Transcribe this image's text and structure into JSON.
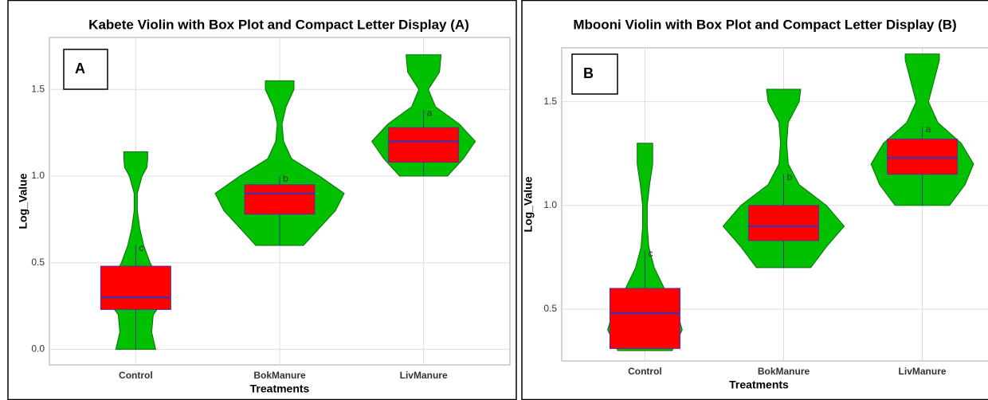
{
  "chart_data": [
    {
      "type": "violin",
      "title": "Kabete Violin with Box Plot and Compact Letter Display (A)",
      "panel_label": "A",
      "xlabel": "Treatments",
      "ylabel": "Log_Value",
      "categories": [
        "Control",
        "BokManure",
        "LivManure"
      ],
      "ylim": [
        -0.09,
        1.8
      ],
      "yticks": [
        {
          "value": 0,
          "label": "0.0"
        },
        0.5,
        {
          "value": 1,
          "label": "1.0"
        },
        1.5
      ],
      "grid": true,
      "violin_color": "#00c000",
      "box_color": "#ff0000",
      "median_color": "#4b2fa0",
      "boxes": [
        {
          "min": 0,
          "q1": 0.23,
          "median": 0.3,
          "q3": 0.48,
          "max": 0.6,
          "letter": "c"
        },
        {
          "min": 0.6,
          "q1": 0.78,
          "median": 0.9,
          "q3": 0.95,
          "max": 1.0,
          "letter": "b"
        },
        {
          "min": 1.0,
          "q1": 1.08,
          "median": 1.2,
          "q3": 1.28,
          "max": 1.38,
          "letter": "a"
        }
      ],
      "violins": [
        {
          "y": [
            0,
            0.1,
            0.2,
            0.3,
            0.4,
            0.5,
            0.6,
            0.7,
            0.8,
            0.9,
            1.0,
            1.05,
            1.1,
            1.14
          ],
          "density": [
            25,
            20,
            22,
            38,
            30,
            18,
            10,
            5,
            2,
            2,
            8,
            14,
            15,
            15
          ]
        },
        {
          "y": [
            0.6,
            0.7,
            0.8,
            0.9,
            1.0,
            1.1,
            1.2,
            1.3,
            1.4,
            1.5,
            1.55
          ],
          "density": [
            30,
            50,
            70,
            81,
            50,
            15,
            5,
            3,
            8,
            18,
            18
          ]
        },
        {
          "y": [
            1.0,
            1.1,
            1.2,
            1.3,
            1.4,
            1.5,
            1.6,
            1.7
          ],
          "density": [
            30,
            50,
            65,
            45,
            15,
            6,
            20,
            22
          ]
        }
      ]
    },
    {
      "type": "violin",
      "title": "Mbooni Violin with Box Plot and Compact Letter Display (B)",
      "panel_label": "B",
      "xlabel": "Treatments",
      "ylabel": "Log_Value",
      "categories": [
        "Control",
        "BokManure",
        "LivManure"
      ],
      "ylim": [
        0.25,
        1.76
      ],
      "yticks": [
        0.5,
        {
          "value": 1,
          "label": "1.0"
        },
        1.5
      ],
      "grid": true,
      "violin_color": "#00c000",
      "box_color": "#ff0000",
      "median_color": "#4b2fa0",
      "boxes": [
        {
          "min": 0.31,
          "q1": 0.31,
          "median": 0.48,
          "q3": 0.6,
          "max": 0.78,
          "letter": "c"
        },
        {
          "min": 0.7,
          "q1": 0.83,
          "median": 0.9,
          "q3": 1.0,
          "max": 1.15,
          "letter": "b"
        },
        {
          "min": 1.0,
          "q1": 1.15,
          "median": 1.23,
          "q3": 1.32,
          "max": 1.38,
          "letter": "a"
        }
      ],
      "violins": [
        {
          "y": [
            0.3,
            0.4,
            0.5,
            0.6,
            0.7,
            0.8,
            0.9,
            1.0,
            1.1,
            1.2,
            1.3
          ],
          "density": [
            35,
            48,
            40,
            25,
            12,
            5,
            3,
            3,
            6,
            10,
            10
          ]
        },
        {
          "y": [
            0.7,
            0.8,
            0.9,
            1.0,
            1.1,
            1.2,
            1.3,
            1.4,
            1.5,
            1.56
          ],
          "density": [
            35,
            55,
            78,
            55,
            20,
            6,
            4,
            6,
            20,
            22
          ]
        },
        {
          "y": [
            1.0,
            1.1,
            1.2,
            1.3,
            1.4,
            1.5,
            1.6,
            1.7,
            1.73
          ],
          "density": [
            35,
            55,
            66,
            50,
            20,
            8,
            15,
            22,
            22
          ]
        }
      ]
    }
  ]
}
